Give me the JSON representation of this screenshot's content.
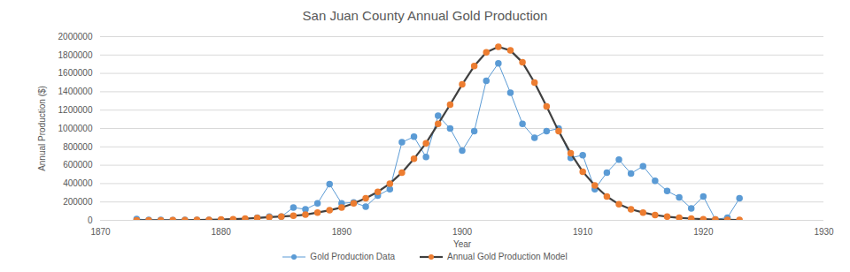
{
  "chart_data": {
    "type": "line",
    "title": "San Juan County Annual Gold Production",
    "x_label": "Year",
    "y_label": "Annual Production ($)",
    "x": [
      1873,
      1874,
      1875,
      1876,
      1877,
      1878,
      1879,
      1880,
      1881,
      1882,
      1883,
      1884,
      1885,
      1886,
      1887,
      1888,
      1889,
      1890,
      1891,
      1892,
      1893,
      1894,
      1895,
      1896,
      1897,
      1898,
      1899,
      1900,
      1901,
      1902,
      1903,
      1904,
      1905,
      1906,
      1907,
      1908,
      1909,
      1910,
      1911,
      1912,
      1913,
      1914,
      1915,
      1916,
      1917,
      1918,
      1919,
      1920,
      1921,
      1922,
      1923
    ],
    "series": [
      {
        "name": "Gold Production Data",
        "color": "#5b9bd5",
        "marker": "circle",
        "values": [
          15000,
          5000,
          5000,
          3000,
          5000,
          5000,
          5000,
          5000,
          5000,
          10000,
          30000,
          40000,
          40000,
          140000,
          120000,
          185000,
          395000,
          185000,
          195000,
          150000,
          270000,
          340000,
          850000,
          910000,
          690000,
          1140000,
          1000000,
          760000,
          970000,
          1520000,
          1710000,
          1390000,
          1050000,
          900000,
          970000,
          1000000,
          680000,
          710000,
          340000,
          520000,
          660000,
          510000,
          590000,
          430000,
          320000,
          250000,
          130000,
          260000,
          10000,
          30000,
          240000
        ]
      },
      {
        "name": "Annual Gold Production Model",
        "color": "#ed7d31",
        "marker": "circle",
        "values": [
          300,
          500,
          900,
          1500,
          2500,
          4000,
          6000,
          9000,
          13000,
          19000,
          26000,
          34000,
          42000,
          50000,
          62000,
          85000,
          110000,
          140000,
          185000,
          240000,
          310000,
          400000,
          520000,
          670000,
          840000,
          1050000,
          1260000,
          1480000,
          1680000,
          1830000,
          1890000,
          1850000,
          1720000,
          1500000,
          1240000,
          970000,
          730000,
          530000,
          380000,
          260000,
          175000,
          120000,
          85000,
          58000,
          40000,
          28000,
          19000,
          13000,
          9000,
          6000,
          4000
        ]
      }
    ],
    "xlim": [
      1870,
      1930
    ],
    "xticks": [
      1870,
      1880,
      1890,
      1900,
      1910,
      1920,
      1930
    ],
    "ylim": [
      0,
      2000000
    ],
    "yticks": [
      0,
      200000,
      400000,
      600000,
      800000,
      1000000,
      1200000,
      1400000,
      1600000,
      1800000,
      2000000
    ],
    "grid": true,
    "legend": "bottom"
  }
}
